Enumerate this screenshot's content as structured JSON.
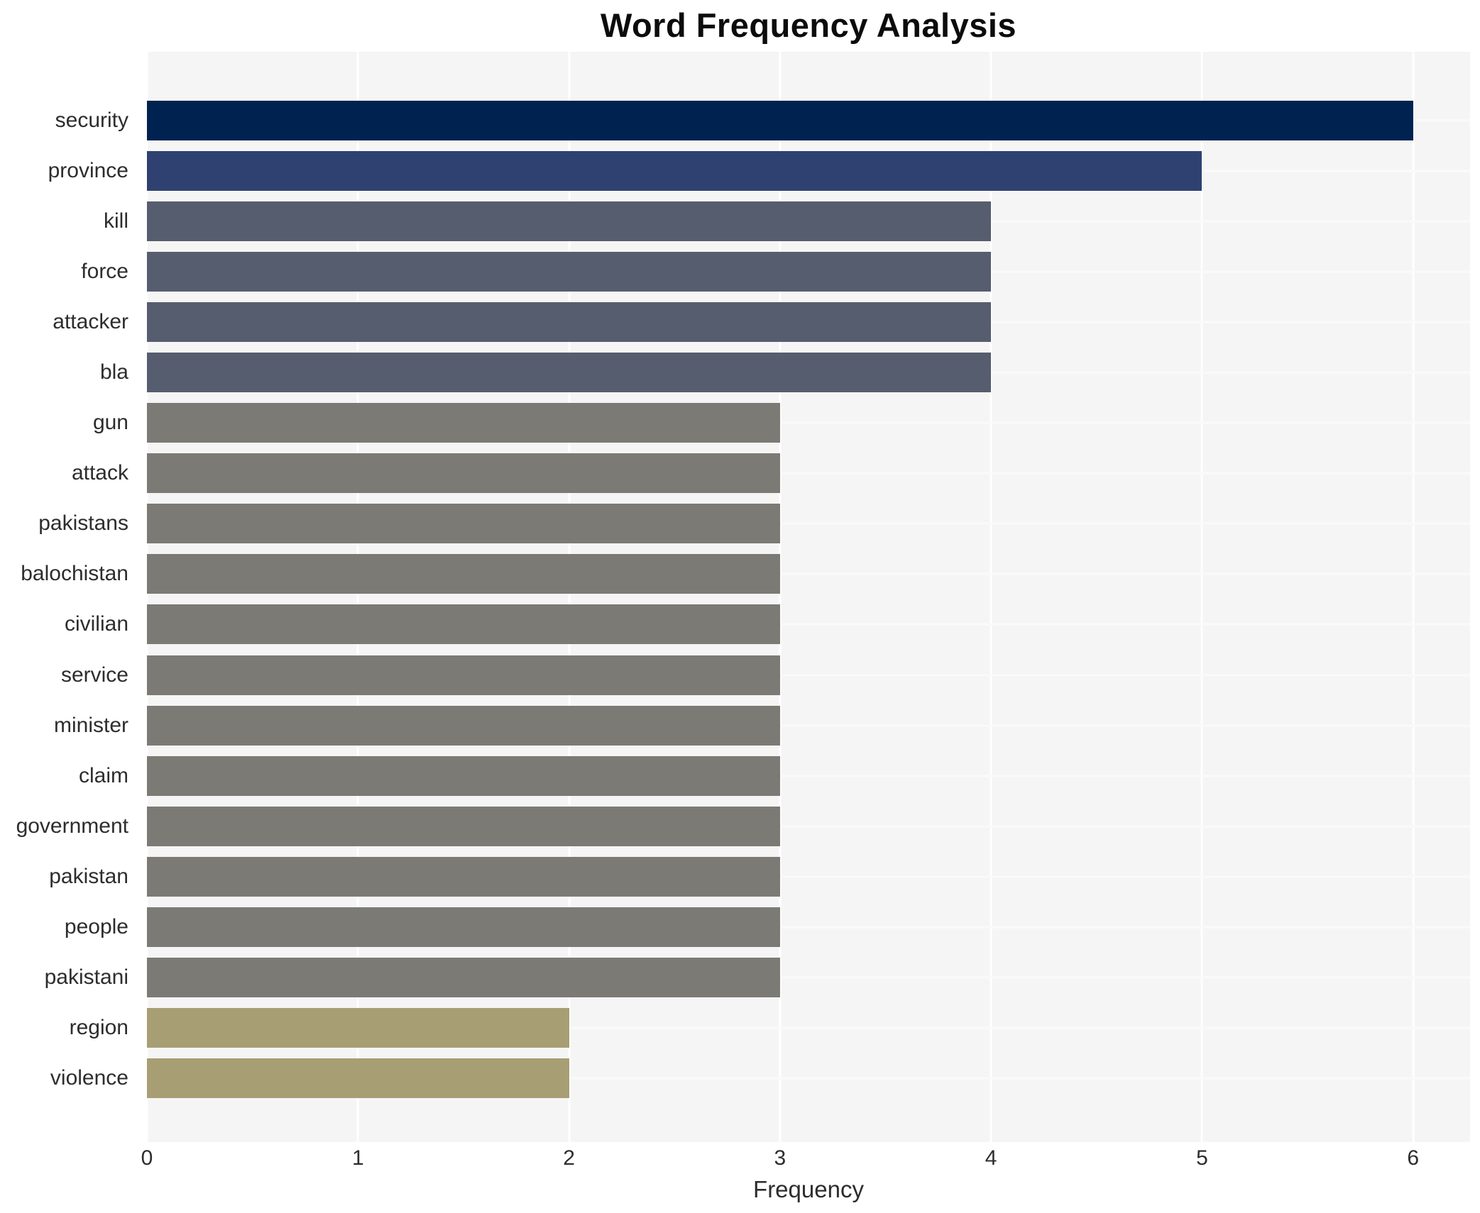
{
  "chart_data": {
    "type": "bar",
    "orientation": "horizontal",
    "title": "Word Frequency Analysis",
    "xlabel": "Frequency",
    "ylabel": "",
    "categories": [
      "security",
      "province",
      "kill",
      "force",
      "attacker",
      "bla",
      "gun",
      "attack",
      "pakistans",
      "balochistan",
      "civilian",
      "service",
      "minister",
      "claim",
      "government",
      "pakistan",
      "people",
      "pakistani",
      "region",
      "violence"
    ],
    "values": [
      6,
      5,
      4,
      4,
      4,
      4,
      3,
      3,
      3,
      3,
      3,
      3,
      3,
      3,
      3,
      3,
      3,
      3,
      2,
      2
    ],
    "bar_colors": [
      "#002250",
      "#2e4170",
      "#565d6e",
      "#565d6e",
      "#565d6e",
      "#565d6e",
      "#7b7a74",
      "#7b7a74",
      "#7b7a74",
      "#7b7a74",
      "#7b7a74",
      "#7b7a74",
      "#7b7a74",
      "#7b7a74",
      "#7b7a74",
      "#7b7a74",
      "#7b7a74",
      "#7b7a74",
      "#a89e74",
      "#a89e74"
    ],
    "x_ticks": [
      0,
      1,
      2,
      3,
      4,
      5,
      6
    ],
    "xlim": [
      0,
      6.27
    ],
    "grid": true,
    "legend": false,
    "plot_bg": "#f6f5f5",
    "grid_color": "#ffffff",
    "text_color": "#2d2d2d",
    "title_color": "#0c0c0c"
  }
}
